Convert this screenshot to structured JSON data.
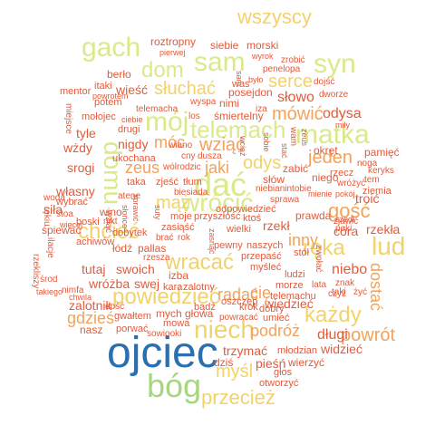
{
  "palette": {
    "blue": "#2b6fb0",
    "green": "#a6d77e",
    "lime": "#dbe98a",
    "yellow": "#f2d26a",
    "orange": "#f4a259",
    "red": "#e45a3a",
    "darkred": "#c0392b"
  },
  "words": [
    {
      "text": "ojciec",
      "color": "#2b6fb0",
      "dir": "h"
    },
    {
      "text": "bóg",
      "color": "#a6d77e",
      "dir": "h"
    },
    {
      "text": "gach",
      "color": "#dbe98a",
      "dir": "h"
    },
    {
      "text": "sam",
      "color": "#dbe98a",
      "dir": "h"
    },
    {
      "text": "syn",
      "color": "#dbe98a",
      "dir": "h"
    },
    {
      "text": "wszyscy",
      "color": "#f2d26a",
      "dir": "h"
    },
    {
      "text": "matka",
      "color": "#dbe98a",
      "dir": "h"
    },
    {
      "text": "mój",
      "color": "#dbe98a",
      "dir": "h"
    },
    {
      "text": "dom",
      "color": "#dbe98a",
      "dir": "h"
    },
    {
      "text": "telemach",
      "color": "#dbe98a",
      "dir": "h"
    },
    {
      "text": "dać",
      "color": "#dbe98a",
      "dir": "h"
    },
    {
      "text": "wrócić",
      "color": "#dbe98a",
      "dir": "h"
    },
    {
      "text": "domu",
      "color": "#dbe98a",
      "dir": "v"
    },
    {
      "text": "niech",
      "color": "#f2d26a",
      "dir": "h"
    },
    {
      "text": "lud",
      "color": "#f2d26a",
      "dir": "h"
    },
    {
      "text": "ręka",
      "color": "#f2d26a",
      "dir": "h"
    },
    {
      "text": "każdy",
      "color": "#f2d26a",
      "dir": "h"
    },
    {
      "text": "powiedzieć",
      "color": "#f2d26a",
      "dir": "h"
    },
    {
      "text": "przecież",
      "color": "#f2d26a",
      "dir": "h"
    },
    {
      "text": "wracać",
      "color": "#f2d26a",
      "dir": "h"
    },
    {
      "text": "chcieć",
      "color": "#f2d26a",
      "dir": "h"
    },
    {
      "text": "słuchać",
      "color": "#f2d26a",
      "dir": "h"
    },
    {
      "text": "serce",
      "color": "#f2d26a",
      "dir": "h"
    },
    {
      "text": "mówić",
      "color": "#f4a259",
      "dir": "h"
    },
    {
      "text": "gość",
      "color": "#f4a259",
      "dir": "h"
    },
    {
      "text": "odys",
      "color": "#f2d26a",
      "dir": "h"
    },
    {
      "text": "wziąć",
      "color": "#f4a259",
      "dir": "h"
    },
    {
      "text": "mąż",
      "color": "#f2d26a",
      "dir": "h"
    },
    {
      "text": "zeus",
      "color": "#f4a259",
      "dir": "h"
    },
    {
      "text": "jaki",
      "color": "#f4a259",
      "dir": "h"
    },
    {
      "text": "móc",
      "color": "#f4a259",
      "dir": "h"
    },
    {
      "text": "jeden",
      "color": "#f4a259",
      "dir": "h"
    },
    {
      "text": "powrót",
      "color": "#f4a259",
      "dir": "h"
    },
    {
      "text": "mysl",
      "color": "#f2d26a",
      "dir": "h"
    },
    {
      "text": "myśl",
      "color": "#f2d26a",
      "dir": "h"
    },
    {
      "text": "podróż",
      "color": "#f4a259",
      "dir": "h"
    },
    {
      "text": "gdzieś",
      "color": "#f4a259",
      "dir": "h"
    },
    {
      "text": "radać",
      "color": "#f4a259",
      "dir": "h"
    },
    {
      "text": "cię",
      "color": "#f4a259",
      "dir": "h"
    },
    {
      "text": "inny",
      "color": "#f4a259",
      "dir": "h"
    },
    {
      "text": "dostać",
      "color": "#f4a259",
      "dir": "v"
    },
    {
      "text": "niebo",
      "color": "#e45a3a",
      "dir": "h"
    },
    {
      "text": "długi",
      "color": "#e45a3a",
      "dir": "h"
    },
    {
      "text": "widzieć",
      "color": "#e45a3a",
      "dir": "h"
    },
    {
      "text": "wiedzieć",
      "color": "#e45a3a",
      "dir": "h"
    },
    {
      "text": "pieśń",
      "color": "#e45a3a",
      "dir": "h"
    },
    {
      "text": "zalotnik",
      "color": "#e45a3a",
      "dir": "h"
    },
    {
      "text": "odysa",
      "color": "#e45a3a",
      "dir": "h"
    },
    {
      "text": "słowo",
      "color": "#e45a3a",
      "dir": "h"
    },
    {
      "text": "wieść",
      "color": "#e45a3a",
      "dir": "h"
    },
    {
      "text": "nigdy",
      "color": "#e45a3a",
      "dir": "h"
    },
    {
      "text": "wżdy",
      "color": "#e45a3a",
      "dir": "h"
    },
    {
      "text": "srogi",
      "color": "#e45a3a",
      "dir": "h"
    },
    {
      "text": "własny",
      "color": "#e45a3a",
      "dir": "h"
    },
    {
      "text": "tyle",
      "color": "#e45a3a",
      "dir": "h"
    },
    {
      "text": "siła",
      "color": "#e45a3a",
      "dir": "h"
    },
    {
      "text": "roztropny",
      "color": "#e45a3a",
      "dir": "h"
    },
    {
      "text": "siebie",
      "color": "#e45a3a",
      "dir": "h"
    },
    {
      "text": "morski",
      "color": "#e45a3a",
      "dir": "h"
    },
    {
      "text": "posejdon",
      "color": "#e45a3a",
      "dir": "h"
    },
    {
      "text": "nimi",
      "color": "#e45a3a",
      "dir": "h"
    },
    {
      "text": "śmiertelny",
      "color": "#e45a3a",
      "dir": "h"
    },
    {
      "text": "troić",
      "color": "#e45a3a",
      "dir": "h"
    },
    {
      "text": "córa",
      "color": "#e45a3a",
      "dir": "h"
    },
    {
      "text": "rzekła",
      "color": "#e45a3a",
      "dir": "h"
    },
    {
      "text": "rzekł",
      "color": "#e45a3a",
      "dir": "h"
    },
    {
      "text": "prawda",
      "color": "#e45a3a",
      "dir": "h"
    },
    {
      "text": "swoich",
      "color": "#e45a3a",
      "dir": "h"
    },
    {
      "text": "wróżba",
      "color": "#e45a3a",
      "dir": "h"
    },
    {
      "text": "swej",
      "color": "#e45a3a",
      "dir": "h"
    },
    {
      "text": "tutaj",
      "color": "#e45a3a",
      "dir": "h"
    },
    {
      "text": "trzymać",
      "color": "#e45a3a",
      "dir": "h"
    },
    {
      "text": "pamięć",
      "color": "#e45a3a",
      "dir": "h"
    },
    {
      "text": "okręt",
      "color": "#e45a3a",
      "dir": "h"
    },
    {
      "text": "berło",
      "color": "#e45a3a",
      "dir": "h"
    },
    {
      "text": "itaki",
      "color": "#e45a3a",
      "dir": "h"
    },
    {
      "text": "mentor",
      "color": "#e45a3a",
      "dir": "h"
    },
    {
      "text": "potem",
      "color": "#e45a3a",
      "dir": "h"
    },
    {
      "text": "mołojec",
      "color": "#e45a3a",
      "dir": "h"
    },
    {
      "text": "drugi",
      "color": "#e45a3a",
      "dir": "h"
    },
    {
      "text": "ukochana",
      "color": "#e45a3a",
      "dir": "h"
    },
    {
      "text": "taka",
      "color": "#e45a3a",
      "dir": "h"
    },
    {
      "text": "wino",
      "color": "#e45a3a",
      "dir": "h"
    },
    {
      "text": "wybrać",
      "color": "#e45a3a",
      "dir": "h"
    },
    {
      "text": "śpiewać",
      "color": "#e45a3a",
      "dir": "h"
    },
    {
      "text": "stoa",
      "color": "#e45a3a",
      "dir": "h"
    },
    {
      "text": "boski",
      "color": "#e45a3a",
      "dir": "h"
    },
    {
      "text": "achiwów",
      "color": "#e45a3a",
      "dir": "h"
    },
    {
      "text": "dobytek",
      "color": "#e45a3a",
      "dir": "h"
    },
    {
      "text": "łódź",
      "color": "#e45a3a",
      "dir": "h"
    },
    {
      "text": "pallas",
      "color": "#e45a3a",
      "dir": "h"
    },
    {
      "text": "izba",
      "color": "#e45a3a",
      "dir": "h"
    },
    {
      "text": "mych",
      "color": "#e45a3a",
      "dir": "h"
    },
    {
      "text": "głowa",
      "color": "#e45a3a",
      "dir": "h"
    },
    {
      "text": "nasz",
      "color": "#e45a3a",
      "dir": "h"
    },
    {
      "text": "gwałtem",
      "color": "#e45a3a",
      "dir": "h"
    },
    {
      "text": "porwać",
      "color": "#e45a3a",
      "dir": "h"
    },
    {
      "text": "sowiooki",
      "color": "#e45a3a",
      "dir": "h"
    },
    {
      "text": "mowa",
      "color": "#e45a3a",
      "dir": "h"
    },
    {
      "text": "dziś",
      "color": "#e45a3a",
      "dir": "h"
    },
    {
      "text": "otworzyć",
      "color": "#e45a3a",
      "dir": "h"
    },
    {
      "text": "głos",
      "color": "#e45a3a",
      "dir": "h"
    },
    {
      "text": "wierzyć",
      "color": "#e45a3a",
      "dir": "h"
    },
    {
      "text": "młodzian",
      "color": "#e45a3a",
      "dir": "h"
    },
    {
      "text": "umieć",
      "color": "#e45a3a",
      "dir": "h"
    },
    {
      "text": "powracać",
      "color": "#e45a3a",
      "dir": "h"
    },
    {
      "text": "krok",
      "color": "#e45a3a",
      "dir": "h"
    },
    {
      "text": "bądź",
      "color": "#e45a3a",
      "dir": "h"
    },
    {
      "text": "dobry",
      "color": "#e45a3a",
      "dir": "h"
    },
    {
      "text": "morze",
      "color": "#e45a3a",
      "dir": "h"
    },
    {
      "text": "ludzi",
      "color": "#e45a3a",
      "dir": "h"
    },
    {
      "text": "myśleć",
      "color": "#e45a3a",
      "dir": "h"
    },
    {
      "text": "przepaść",
      "color": "#e45a3a",
      "dir": "h"
    },
    {
      "text": "naszych",
      "color": "#e45a3a",
      "dir": "h"
    },
    {
      "text": "pewny",
      "color": "#e45a3a",
      "dir": "h"
    },
    {
      "text": "wielki",
      "color": "#e45a3a",
      "dir": "h"
    },
    {
      "text": "zasiąść",
      "color": "#e45a3a",
      "dir": "h"
    },
    {
      "text": "moje",
      "color": "#e45a3a",
      "dir": "h"
    },
    {
      "text": "przyszłość",
      "color": "#e45a3a",
      "dir": "h"
    },
    {
      "text": "ktoś",
      "color": "#e45a3a",
      "dir": "h"
    },
    {
      "text": "biesiada",
      "color": "#e45a3a",
      "dir": "h"
    },
    {
      "text": "zjeść",
      "color": "#e45a3a",
      "dir": "h"
    },
    {
      "text": "tłum",
      "color": "#e45a3a",
      "dir": "h"
    },
    {
      "text": "wólrodzic",
      "color": "#e45a3a",
      "dir": "h"
    },
    {
      "text": "wiano",
      "color": "#e45a3a",
      "dir": "h"
    },
    {
      "text": "cny",
      "color": "#e45a3a",
      "dir": "h"
    },
    {
      "text": "dusza",
      "color": "#e45a3a",
      "dir": "h"
    },
    {
      "text": "zabić",
      "color": "#e45a3a",
      "dir": "h"
    },
    {
      "text": "słów",
      "color": "#e45a3a",
      "dir": "h"
    },
    {
      "text": "niego",
      "color": "#e45a3a",
      "dir": "h"
    },
    {
      "text": "rzecz",
      "color": "#e45a3a",
      "dir": "h"
    },
    {
      "text": "niebianintobie",
      "color": "#e45a3a",
      "dir": "h"
    },
    {
      "text": "sprawa",
      "color": "#e45a3a",
      "dir": "h"
    },
    {
      "text": "mienie",
      "color": "#e45a3a",
      "dir": "h"
    },
    {
      "text": "pokój",
      "color": "#e45a3a",
      "dir": "h"
    },
    {
      "text": "ziemia",
      "color": "#e45a3a",
      "dir": "h"
    },
    {
      "text": "keryks",
      "color": "#e45a3a",
      "dir": "h"
    },
    {
      "text": "noga",
      "color": "#e45a3a",
      "dir": "h"
    },
    {
      "text": "tem",
      "color": "#e45a3a",
      "dir": "h"
    },
    {
      "text": "wróżyć",
      "color": "#e45a3a",
      "dir": "h"
    },
    {
      "text": "zjawić",
      "color": "#e45a3a",
      "dir": "h"
    },
    {
      "text": "szedł",
      "color": "#e45a3a",
      "dir": "h"
    },
    {
      "text": "poki",
      "color": "#e45a3a",
      "dir": "h"
    },
    {
      "text": "stół",
      "color": "#e45a3a",
      "dir": "h"
    },
    {
      "text": "znak",
      "color": "#e45a3a",
      "dir": "h"
    },
    {
      "text": "taki",
      "color": "#e45a3a",
      "dir": "h"
    },
    {
      "text": "lata",
      "color": "#e45a3a",
      "dir": "h"
    },
    {
      "text": "czyż",
      "color": "#e45a3a",
      "dir": "h"
    },
    {
      "text": "żyć",
      "color": "#e45a3a",
      "dir": "h"
    },
    {
      "text": "telemachu",
      "color": "#e45a3a",
      "dir": "h"
    },
    {
      "text": "odpowiedzieć",
      "color": "#e45a3a",
      "dir": "h"
    },
    {
      "text": "zatem",
      "color": "#e45a3a",
      "dir": "h"
    },
    {
      "text": "oszczep",
      "color": "#e45a3a",
      "dir": "h"
    },
    {
      "text": "zalotny",
      "color": "#e45a3a",
      "dir": "h"
    },
    {
      "text": "kara",
      "color": "#e45a3a",
      "dir": "h"
    },
    {
      "text": "rzesza",
      "color": "#e45a3a",
      "dir": "h"
    },
    {
      "text": "brać",
      "color": "#e45a3a",
      "dir": "h"
    },
    {
      "text": "rok",
      "color": "#e45a3a",
      "dir": "h"
    },
    {
      "text": "nikt",
      "color": "#e45a3a",
      "dir": "h"
    },
    {
      "text": "atene",
      "color": "#e45a3a",
      "dir": "h"
    },
    {
      "text": "woda",
      "color": "#e45a3a",
      "dir": "h"
    },
    {
      "text": "nimfa",
      "color": "#e45a3a",
      "dir": "h"
    },
    {
      "text": "środ",
      "color": "#e45a3a",
      "dir": "h"
    },
    {
      "text": "takiego",
      "color": "#e45a3a",
      "dir": "h"
    },
    {
      "text": "chwila",
      "color": "#e45a3a",
      "dir": "h"
    },
    {
      "text": "dość",
      "color": "#e45a3a",
      "dir": "h"
    },
    {
      "text": "wyspa",
      "color": "#e45a3a",
      "dir": "h"
    },
    {
      "text": "telemacha",
      "color": "#e45a3a",
      "dir": "h"
    },
    {
      "text": "los",
      "color": "#e45a3a",
      "dir": "h"
    },
    {
      "text": "ciebie",
      "color": "#e45a3a",
      "dir": "h"
    },
    {
      "text": "powrotem",
      "color": "#e45a3a",
      "dir": "h"
    },
    {
      "text": "pierwej",
      "color": "#e45a3a",
      "dir": "h"
    },
    {
      "text": "wyrok",
      "color": "#e45a3a",
      "dir": "h"
    },
    {
      "text": "zrobić",
      "color": "#e45a3a",
      "dir": "h"
    },
    {
      "text": "penelopa",
      "color": "#e45a3a",
      "dir": "h"
    },
    {
      "text": "dojść",
      "color": "#e45a3a",
      "dir": "h"
    },
    {
      "text": "dworze",
      "color": "#e45a3a",
      "dir": "h"
    },
    {
      "text": "iza",
      "color": "#e45a3a",
      "dir": "h"
    },
    {
      "text": "miły",
      "color": "#e45a3a",
      "dir": "h"
    },
    {
      "text": "was",
      "color": "#e45a3a",
      "dir": "h"
    },
    {
      "text": "było",
      "color": "#e45a3a",
      "dir": "h"
    },
    {
      "text": "więcej",
      "color": "#e45a3a",
      "dir": "h"
    },
    {
      "text": "miejsce",
      "color": "#e45a3a",
      "dir": "v"
    },
    {
      "text": "rękiu",
      "color": "#e45a3a",
      "dir": "v"
    },
    {
      "text": "ilacje",
      "color": "#e45a3a",
      "dir": "v"
    },
    {
      "text": "rzekliszy",
      "color": "#e45a3a",
      "dir": "v"
    },
    {
      "text": "wziąć",
      "color": "#e45a3a",
      "dir": "v"
    },
    {
      "text": "słońce",
      "color": "#e45a3a",
      "dir": "v"
    },
    {
      "text": "sprawić",
      "color": "#e45a3a",
      "dir": "v"
    },
    {
      "text": "suty",
      "color": "#e45a3a",
      "dir": "v"
    },
    {
      "text": "zasnąć",
      "color": "#e45a3a",
      "dir": "v"
    },
    {
      "text": "zwołać",
      "color": "#e45a3a",
      "dir": "v"
    },
    {
      "text": "sam",
      "color": "#e45a3a",
      "dir": "v"
    },
    {
      "text": "wciąż",
      "color": "#e45a3a",
      "dir": "v"
    },
    {
      "text": "wam",
      "color": "#e45a3a",
      "dir": "v"
    },
    {
      "text": "stać",
      "color": "#e45a3a",
      "dir": "v"
    },
    {
      "text": "sobie",
      "color": "#e45a3a",
      "dir": "v"
    },
    {
      "text": "zeus",
      "color": "#e45a3a",
      "dir": "v"
    }
  ]
}
